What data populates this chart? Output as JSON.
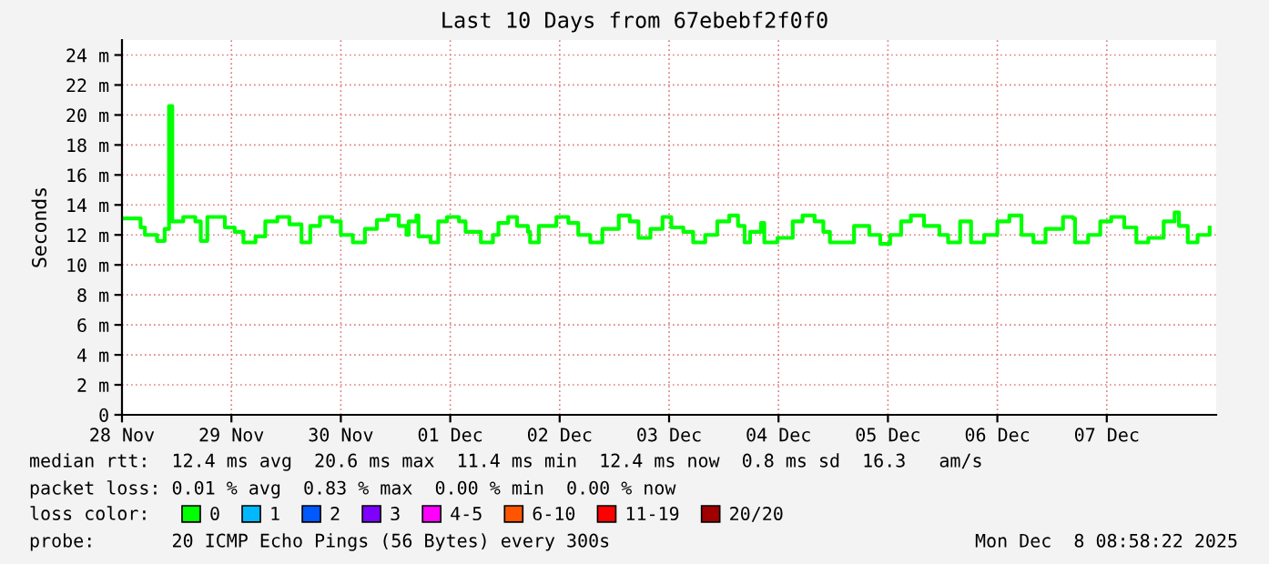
{
  "chart_data": {
    "type": "step",
    "title": "Last 10 Days from 67ebebf2f0f0",
    "ylabel": "Seconds",
    "x": [
      "2025-11-28T00:00",
      "2025-11-28T04:05",
      "2025-11-28T05:02",
      "2025-11-28T07:41",
      "2025-11-28T09:22",
      "2025-11-28T10:19",
      "2025-11-28T11:02",
      "2025-11-28T13:26",
      "2025-11-28T16:05",
      "2025-11-28T17:17",
      "2025-11-28T18:43",
      "2025-11-28T22:05",
      "2025-11-28T22:34",
      "2025-11-29T00:43",
      "2025-11-29T02:38",
      "2025-11-29T05:17",
      "2025-11-29T07:26",
      "2025-11-29T10:05",
      "2025-11-29T12:43",
      "2025-11-29T15:22",
      "2025-11-29T17:17",
      "2025-11-29T19:26",
      "2025-11-29T22:05",
      "2025-11-30T00:00",
      "2025-11-30T02:38",
      "2025-11-30T05:17",
      "2025-11-30T07:55",
      "2025-11-30T10:19",
      "2025-11-30T12:43",
      "2025-11-30T14:24",
      "2025-11-30T14:53",
      "2025-11-30T16:34",
      "2025-11-30T17:02",
      "2025-11-30T19:41",
      "2025-11-30T21:22",
      "2025-11-30T23:17",
      "2025-12-01T01:55",
      "2025-12-01T03:22",
      "2025-12-01T06:43",
      "2025-12-01T09:22",
      "2025-12-01T10:34",
      "2025-12-01T12:43",
      "2025-12-01T14:38",
      "2025-12-01T17:02",
      "2025-12-01T17:31",
      "2025-12-01T19:26",
      "2025-12-01T23:17",
      "2025-12-02T01:55",
      "2025-12-02T04:05",
      "2025-12-02T06:43",
      "2025-12-02T09:22",
      "2025-12-02T12:58",
      "2025-12-02T15:22",
      "2025-12-02T17:17",
      "2025-12-02T19:55",
      "2025-12-02T22:34",
      "2025-12-03T00:29",
      "2025-12-03T03:07",
      "2025-12-03T05:17",
      "2025-12-03T07:55",
      "2025-12-03T10:34",
      "2025-12-03T13:12",
      "2025-12-03T15:07",
      "2025-12-03T16:34",
      "2025-12-03T17:46",
      "2025-12-03T20:10",
      "2025-12-03T20:53",
      "2025-12-03T23:46",
      "2025-12-04T03:07",
      "2025-12-04T05:17",
      "2025-12-04T07:55",
      "2025-12-04T09:50",
      "2025-12-04T11:17",
      "2025-12-04T13:12",
      "2025-12-04T16:34",
      "2025-12-04T19:55",
      "2025-12-04T22:19",
      "2025-12-05T00:29",
      "2025-12-05T02:53",
      "2025-12-05T05:02",
      "2025-12-05T07:55",
      "2025-12-05T11:17",
      "2025-12-05T13:12",
      "2025-12-05T15:50",
      "2025-12-05T17:46",
      "2025-12-05T18:14",
      "2025-12-05T21:07",
      "2025-12-06T00:00",
      "2025-12-06T02:38",
      "2025-12-06T05:17",
      "2025-12-06T07:55",
      "2025-12-06T10:34",
      "2025-12-06T14:24",
      "2025-12-06T16:34",
      "2025-12-06T17:02",
      "2025-12-06T19:55",
      "2025-12-06T22:34",
      "2025-12-07T00:58",
      "2025-12-07T03:50",
      "2025-12-07T06:29",
      "2025-12-07T09:07",
      "2025-12-07T12:29",
      "2025-12-07T14:53",
      "2025-12-07T15:50",
      "2025-12-07T17:46",
      "2025-12-07T19:55",
      "2025-12-07T22:34"
    ],
    "series": [
      {
        "name": "0",
        "color": "#00ff00",
        "values": [
          13.1,
          12.5,
          12.0,
          11.6,
          12.4,
          20.6,
          12.9,
          13.2,
          12.9,
          11.6,
          13.2,
          13.2,
          12.5,
          12.2,
          11.5,
          11.9,
          12.9,
          13.2,
          12.7,
          11.5,
          12.6,
          13.2,
          12.9,
          12.0,
          11.5,
          12.4,
          13.0,
          13.3,
          12.6,
          12.0,
          12.9,
          13.3,
          11.9,
          11.5,
          12.9,
          13.2,
          12.9,
          12.2,
          11.5,
          12.0,
          12.8,
          13.2,
          12.6,
          12.2,
          11.5,
          12.6,
          13.2,
          12.8,
          12.0,
          11.5,
          12.4,
          13.3,
          12.9,
          11.8,
          12.4,
          13.2,
          12.5,
          12.2,
          11.5,
          12.0,
          12.9,
          13.3,
          12.6,
          11.5,
          12.2,
          12.8,
          11.5,
          11.8,
          12.9,
          13.3,
          12.9,
          12.2,
          11.5,
          11.5,
          12.6,
          12.0,
          11.4,
          12.0,
          12.9,
          13.3,
          12.6,
          12.0,
          11.5,
          12.9,
          12.9,
          11.5,
          12.0,
          12.9,
          13.3,
          12.0,
          11.5,
          12.4,
          13.2,
          13.1,
          11.5,
          12.0,
          12.9,
          13.2,
          12.5,
          11.5,
          11.8,
          12.9,
          13.5,
          12.6,
          11.5,
          12.0,
          12.5
        ]
      },
      {
        "name": "1",
        "color": "#00b8ff",
        "x": [
          null
        ],
        "values": [
          null
        ]
      },
      {
        "name": "2",
        "color": "#0059ff",
        "x": [
          null
        ],
        "values": [
          null
        ]
      },
      {
        "name": "3",
        "color": "#7e00ff",
        "x": [
          null
        ],
        "values": [
          null
        ]
      },
      {
        "name": "4-5",
        "color": "#ff00ff",
        "x": [
          null
        ],
        "values": [
          null
        ]
      },
      {
        "name": "6-10",
        "color": "#ff5500",
        "x": [
          null
        ],
        "values": [
          null
        ]
      },
      {
        "name": "11-19",
        "color": "#ff0000",
        "x": [
          null
        ],
        "values": [
          null
        ]
      },
      {
        "name": "20/20",
        "color": "#a10000",
        "x": [
          null
        ],
        "values": [
          null
        ]
      }
    ],
    "legend": "bottom",
    "legend_title": "loss color:",
    "xlim": [
      "2025-11-28",
      "2025-12-08"
    ],
    "xticks": [
      {
        "value": "2025-11-28",
        "label": "28 Nov"
      },
      {
        "value": "2025-11-29",
        "label": "29 Nov"
      },
      {
        "value": "2025-11-30",
        "label": "30 Nov"
      },
      {
        "value": "2025-12-01",
        "label": "01 Dec"
      },
      {
        "value": "2025-12-02",
        "label": "02 Dec"
      },
      {
        "value": "2025-12-03",
        "label": "03 Dec"
      },
      {
        "value": "2025-12-04",
        "label": "04 Dec"
      },
      {
        "value": "2025-12-05",
        "label": "05 Dec"
      },
      {
        "value": "2025-12-06",
        "label": "06 Dec"
      },
      {
        "value": "2025-12-07",
        "label": "07 Dec"
      }
    ],
    "ylim": [
      0,
      25
    ],
    "yticks": [
      0,
      {
        "value": 2,
        "label": "2 m"
      },
      {
        "value": 4,
        "label": "4 m"
      },
      {
        "value": 6,
        "label": "6 m"
      },
      {
        "value": 8,
        "label": "8 m"
      },
      {
        "value": 10,
        "label": "10 m"
      },
      {
        "value": 12,
        "label": "12 m"
      },
      {
        "value": 14,
        "label": "14 m"
      },
      {
        "value": 16,
        "label": "16 m"
      },
      {
        "value": 18,
        "label": "18 m"
      },
      {
        "value": 20,
        "label": "20 m"
      },
      {
        "value": 22,
        "label": "22 m"
      },
      {
        "value": 24,
        "label": "24 m"
      }
    ],
    "grid": true,
    "annotations": [
      "median rtt:  12.4 ms avg  20.6 ms max  11.4 ms min  12.4 ms now  0.8 ms sd  16.3   am/s",
      "packet loss: 0.01 % avg  0.83 % max  0.00 % min  0.00 % now",
      "probe:       20 ICMP Echo Pings (56 Bytes) every 300s",
      "Mon Dec  8 08:58:22 2025"
    ]
  }
}
